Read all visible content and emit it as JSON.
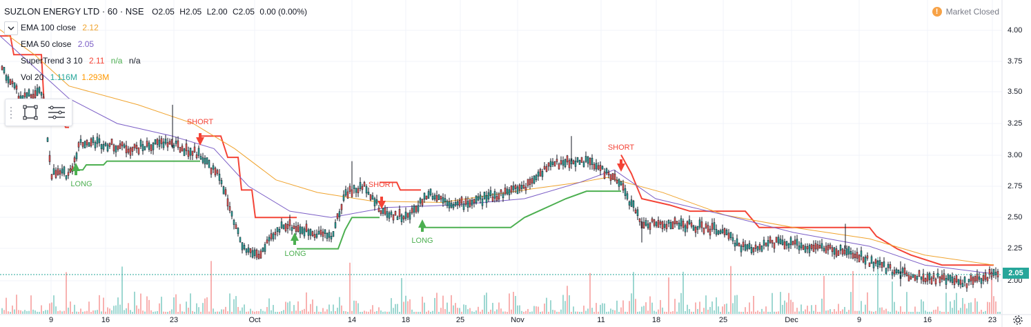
{
  "header": {
    "symbol": "SUZLON ENERGY LTD · 60 · NSE",
    "ohlc": {
      "o": "O2.05",
      "h": "H2.05",
      "l": "L2.00",
      "c": "C2.05",
      "chg": "0.00 (0.00%)"
    }
  },
  "indicators": [
    {
      "name": "EMA 100 close",
      "value": "2.12",
      "color": "#f0a32d"
    },
    {
      "name": "EMA 50 close",
      "value": "2.05",
      "color": "#7b5ec6"
    },
    {
      "name": "SuperTrend 3 10",
      "value": "2.11",
      "value2": "n/a",
      "value3": "n/a",
      "color": "#f44336"
    },
    {
      "name": "Vol 20",
      "value": "1.116M",
      "value2": "1.293M",
      "color": "#26a69a",
      "color2": "#ff9800"
    }
  ],
  "market_status": {
    "icon": "exclamation-icon",
    "text": "Market Closed"
  },
  "price_axis": {
    "ticks": [
      "4.00",
      "3.75",
      "3.50",
      "3.25",
      "3.00",
      "2.75",
      "2.50",
      "2.25",
      "2.00"
    ],
    "last_price": "2.05"
  },
  "time_axis": {
    "ticks": [
      "9",
      "16",
      "23",
      "Oct",
      "14",
      "18",
      "25",
      "Nov",
      "11",
      "18",
      "25",
      "Dec",
      "9",
      "16",
      "23"
    ]
  },
  "signals": [
    {
      "type": "long",
      "label": "LONG"
    },
    {
      "type": "short",
      "label": "SHORT"
    },
    {
      "type": "long",
      "label": "LONG"
    },
    {
      "type": "short",
      "label": "SHORT"
    },
    {
      "type": "long",
      "label": "LONG"
    },
    {
      "type": "short",
      "label": "SHORT"
    }
  ],
  "colors": {
    "up": "#26a69a",
    "down": "#ef5350",
    "candle": "#131722",
    "supertrend_up": "#4caf50",
    "supertrend_down": "#f44336",
    "ema100": "#f0a32d",
    "ema50": "#7b5ec6",
    "grid": "#f0f3fa"
  },
  "chart_data": {
    "type": "candlestick",
    "ylim": [
      1.8,
      4.2
    ],
    "price_series_approx": [
      [
        "Sep 3",
        3.7
      ],
      [
        "Sep 6",
        3.45
      ],
      [
        "Sep 9",
        2.85
      ],
      [
        "Sep 11",
        3.1
      ],
      [
        "Sep 16",
        3.1
      ],
      [
        "Sep 23",
        3.1
      ],
      [
        "Sep 27",
        2.9
      ],
      [
        "Sep 30",
        2.55
      ],
      [
        "Oct 1",
        2.25
      ],
      [
        "Oct 7",
        2.45
      ],
      [
        "Oct 10",
        2.35
      ],
      [
        "Oct 14",
        2.75
      ],
      [
        "Oct 17",
        2.55
      ],
      [
        "Oct 21",
        2.65
      ],
      [
        "Oct 25",
        2.65
      ],
      [
        "Nov 1",
        2.75
      ],
      [
        "Nov 6",
        2.9
      ],
      [
        "Nov 11",
        2.85
      ],
      [
        "Nov 14",
        2.55
      ],
      [
        "Nov 18",
        2.45
      ],
      [
        "Nov 25",
        2.4
      ],
      [
        "Nov 29",
        2.3
      ],
      [
        "Dec 9",
        2.25
      ],
      [
        "Dec 13",
        2.1
      ],
      [
        "Dec 18",
        2.0
      ],
      [
        "Dec 23",
        2.05
      ]
    ],
    "ema100_approx": [
      [
        "Sep 3",
        4.0
      ],
      [
        "Sep 23",
        3.3
      ],
      [
        "Oct 14",
        2.7
      ],
      [
        "Nov 11",
        2.82
      ],
      [
        "Dec 23",
        2.12
      ]
    ],
    "ema50_approx": [
      [
        "Sep 3",
        3.95
      ],
      [
        "Sep 23",
        3.15
      ],
      [
        "Oct 7",
        2.5
      ],
      [
        "Nov 11",
        2.85
      ],
      [
        "Dec 23",
        2.05
      ]
    ],
    "supertrend_approx": [
      [
        "Sep 3",
        4.0
      ],
      [
        "Sep 9",
        3.25
      ],
      [
        "Sep 12",
        2.8
      ],
      [
        "Sep 26",
        3.15
      ],
      [
        "Oct 1",
        2.5
      ],
      [
        "Oct 8",
        2.25
      ],
      [
        "Oct 17",
        2.72
      ],
      [
        "Oct 21",
        2.42
      ],
      [
        "Nov 13",
        2.92
      ],
      [
        "Dec 23",
        2.11
      ]
    ]
  }
}
